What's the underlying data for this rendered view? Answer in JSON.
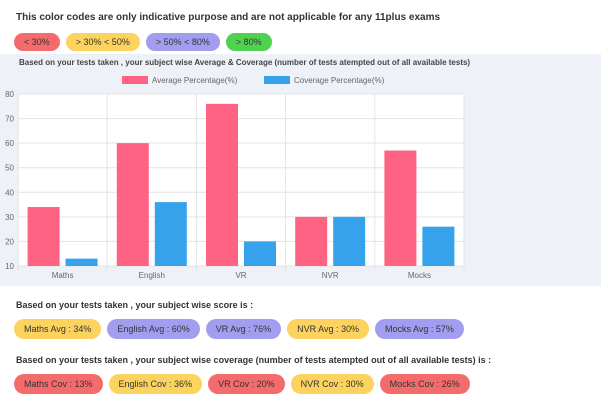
{
  "notice": "This color codes are only indicative purpose and are not applicable for any 11plus exams",
  "legend_pills": [
    {
      "label": "< 30%",
      "color": "#f46b6b"
    },
    {
      "label": "> 30% < 50%",
      "color": "#fcd35e"
    },
    {
      "label": "> 50% < 80%",
      "color": "#a39df0"
    },
    {
      "label": "> 80%",
      "color": "#4fd24f"
    }
  ],
  "chart_heading": "Based on your tests taken , your subject wise Average & Coverage (number of tests atempted out of all available tests)",
  "chart_data": {
    "type": "bar",
    "categories": [
      "Maths",
      "English",
      "VR",
      "NVR",
      "Mocks"
    ],
    "series": [
      {
        "name": "Average Percentage(%)",
        "values": [
          34,
          60,
          76,
          30,
          57
        ],
        "color": "#ff6384"
      },
      {
        "name": "Coverage Percentage(%)",
        "values": [
          13,
          36,
          20,
          30,
          26
        ],
        "color": "#36a2eb"
      }
    ],
    "yticks": [
      10,
      20,
      30,
      40,
      50,
      60,
      70,
      80
    ],
    "ylim": [
      10,
      80
    ],
    "grid": true,
    "legend_position": "top"
  },
  "score_heading": "Based on your tests taken , your subject wise score is :",
  "score_pills": [
    {
      "label": "Maths Avg : 34%",
      "color": "#fcd35e"
    },
    {
      "label": "English Avg : 60%",
      "color": "#a39df0"
    },
    {
      "label": "VR Avg : 76%",
      "color": "#a39df0"
    },
    {
      "label": "NVR Avg : 30%",
      "color": "#fcd35e"
    },
    {
      "label": "Mocks Avg : 57%",
      "color": "#a39df0"
    }
  ],
  "coverage_heading": "Based on your tests taken , your subject wise coverage (number of tests atempted out of all available tests) is :",
  "coverage_pills": [
    {
      "label": "Maths Cov : 13%",
      "color": "#f46b6b"
    },
    {
      "label": "English Cov : 36%",
      "color": "#fcd35e"
    },
    {
      "label": "VR Cov : 20%",
      "color": "#f46b6b"
    },
    {
      "label": "NVR Cov : 30%",
      "color": "#fcd35e"
    },
    {
      "label": "Mocks Cov : 26%",
      "color": "#f46b6b"
    }
  ]
}
